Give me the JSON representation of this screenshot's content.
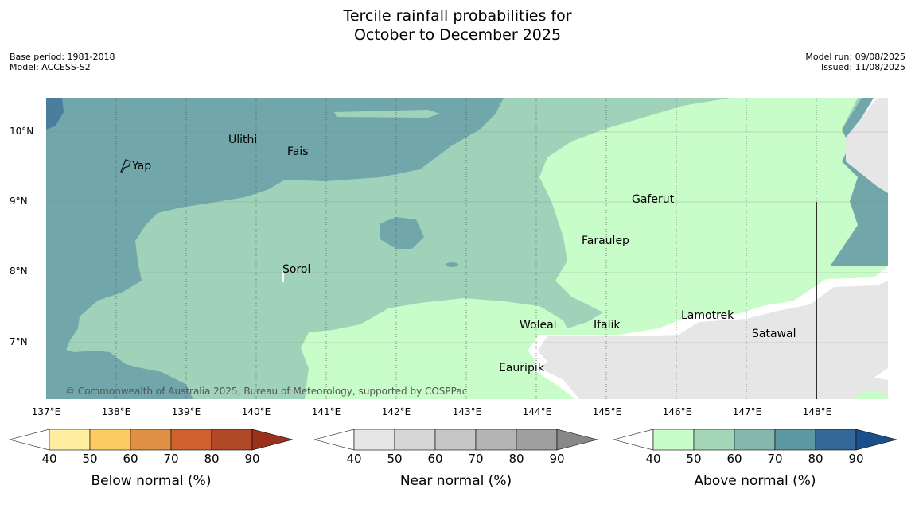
{
  "title_line1": "Tercile rainfall probabilities for",
  "title_line2": "October to December 2025",
  "base_period": "Base period: 1981-2018",
  "model": "Model: ACCESS-S2",
  "model_run": "Model run: 09/08/2025",
  "issued": "Issued: 11/08/2025",
  "copyright": "© Commonwealth of Australia 2025, Bureau of Meteorology, supported by COSPPac",
  "latitudes": [
    "10°N",
    "9°N",
    "8°N",
    "7°N"
  ],
  "longitudes": [
    "137°E",
    "138°E",
    "139°E",
    "140°E",
    "141°E",
    "142°E",
    "143°E",
    "144°E",
    "145°E",
    "146°E",
    "147°E",
    "148°E"
  ],
  "places": {
    "ulithi": "Ulithi",
    "fais": "Fais",
    "yap": "Yap",
    "gaferut": "Gaferut",
    "faraulep": "Faraulep",
    "sorol": "Sorol",
    "lamotrek": "Lamotrek",
    "satawal": "Satawal",
    "woleai": "Woleai",
    "ifalik": "Ifalik",
    "eauripik": "Eauripik"
  },
  "legends": [
    {
      "title": "Below normal (%)",
      "ticks": [
        "40",
        "50",
        "60",
        "70",
        "80",
        "90"
      ],
      "colors": [
        "#ffffff",
        "#ffeda0",
        "#fecb62",
        "#e09044",
        "#cf6030",
        "#b04a26",
        "#98321c"
      ]
    },
    {
      "title": "Near normal (%)",
      "ticks": [
        "40",
        "50",
        "60",
        "70",
        "80",
        "90"
      ],
      "colors": [
        "#ffffff",
        "#e6e6e6",
        "#d6d6d6",
        "#c6c6c6",
        "#b4b4b4",
        "#9f9f9f",
        "#888888"
      ]
    },
    {
      "title": "Above normal (%)",
      "ticks": [
        "40",
        "50",
        "60",
        "70",
        "80",
        "90"
      ],
      "colors": [
        "#ffffff",
        "#c8fcc8",
        "#a3d6b7",
        "#84b8ad",
        "#5c97a4",
        "#356899",
        "#1b4f8a"
      ]
    }
  ],
  "map_colors": {
    "land_none": "#ffffff",
    "near_normal_40_50": "#e6e6e6",
    "above_40_50": "#c8fcc8",
    "above_50_60": "#a0d2ba",
    "above_60_70": "#71a6aa",
    "above_70_80": "#4b7e9c"
  }
}
